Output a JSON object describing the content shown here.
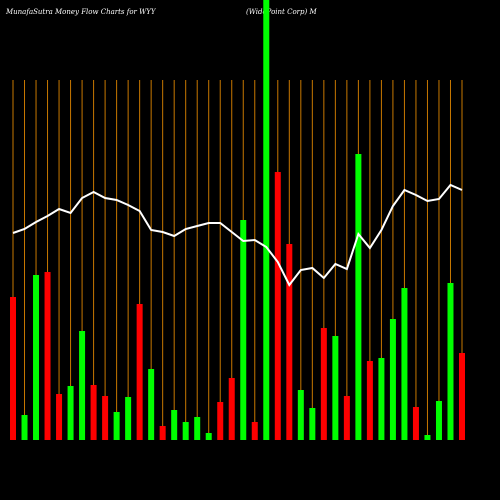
{
  "chart_data": {
    "type": "money-flow",
    "title": "MunafaSutra  Money Flow  Charts for WYY",
    "subtitle": "(WidePoint Corp) M",
    "ylim": [
      0,
      440
    ],
    "grid_color": "#c87800",
    "line_color": "#ffffff",
    "bars": [
      143,
      25,
      165,
      168,
      46,
      54,
      109,
      55,
      44,
      28,
      43,
      136,
      71,
      14,
      30,
      18,
      23,
      7,
      38,
      62,
      220,
      18,
      440,
      268,
      196,
      50,
      32,
      112,
      104,
      44,
      286,
      79,
      82,
      121,
      152,
      33,
      5,
      39,
      157,
      87
    ],
    "bar_colors": [
      "#ff0000",
      "#00ff00",
      "#00ff00",
      "#ff0000",
      "#ff0000",
      "#00ff00",
      "#00ff00",
      "#ff0000",
      "#ff0000",
      "#00ff00",
      "#00ff00",
      "#ff0000",
      "#00ff00",
      "#ff0000",
      "#00ff00",
      "#00ff00",
      "#00ff00",
      "#00ff00",
      "#ff0000",
      "#ff0000",
      "#00ff00",
      "#ff0000",
      "#00ff00",
      "#ff0000",
      "#ff0000",
      "#00ff00",
      "#00ff00",
      "#ff0000",
      "#00ff00",
      "#ff0000",
      "#00ff00",
      "#ff0000",
      "#00ff00",
      "#00ff00",
      "#00ff00",
      "#ff0000",
      "#00ff00",
      "#00ff00",
      "#00ff00",
      "#ff0000"
    ],
    "line": [
      207,
      211,
      218,
      224,
      231,
      227,
      242,
      248,
      242,
      240,
      235,
      229,
      210,
      208,
      204,
      211,
      214,
      217,
      217,
      208,
      199,
      200,
      193,
      178,
      155,
      170,
      172,
      162,
      176,
      171,
      206,
      192,
      210,
      234,
      250,
      245,
      239,
      241,
      255,
      250
    ]
  }
}
